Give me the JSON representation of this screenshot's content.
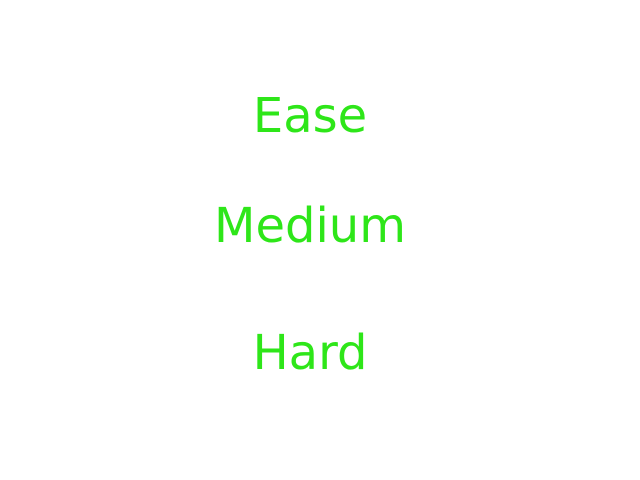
{
  "menu": {
    "options": [
      {
        "label": "Ease"
      },
      {
        "label": "Medium"
      },
      {
        "label": "Hard"
      }
    ]
  },
  "colors": {
    "background": "#ffffff",
    "option_text": "#2ee619"
  }
}
